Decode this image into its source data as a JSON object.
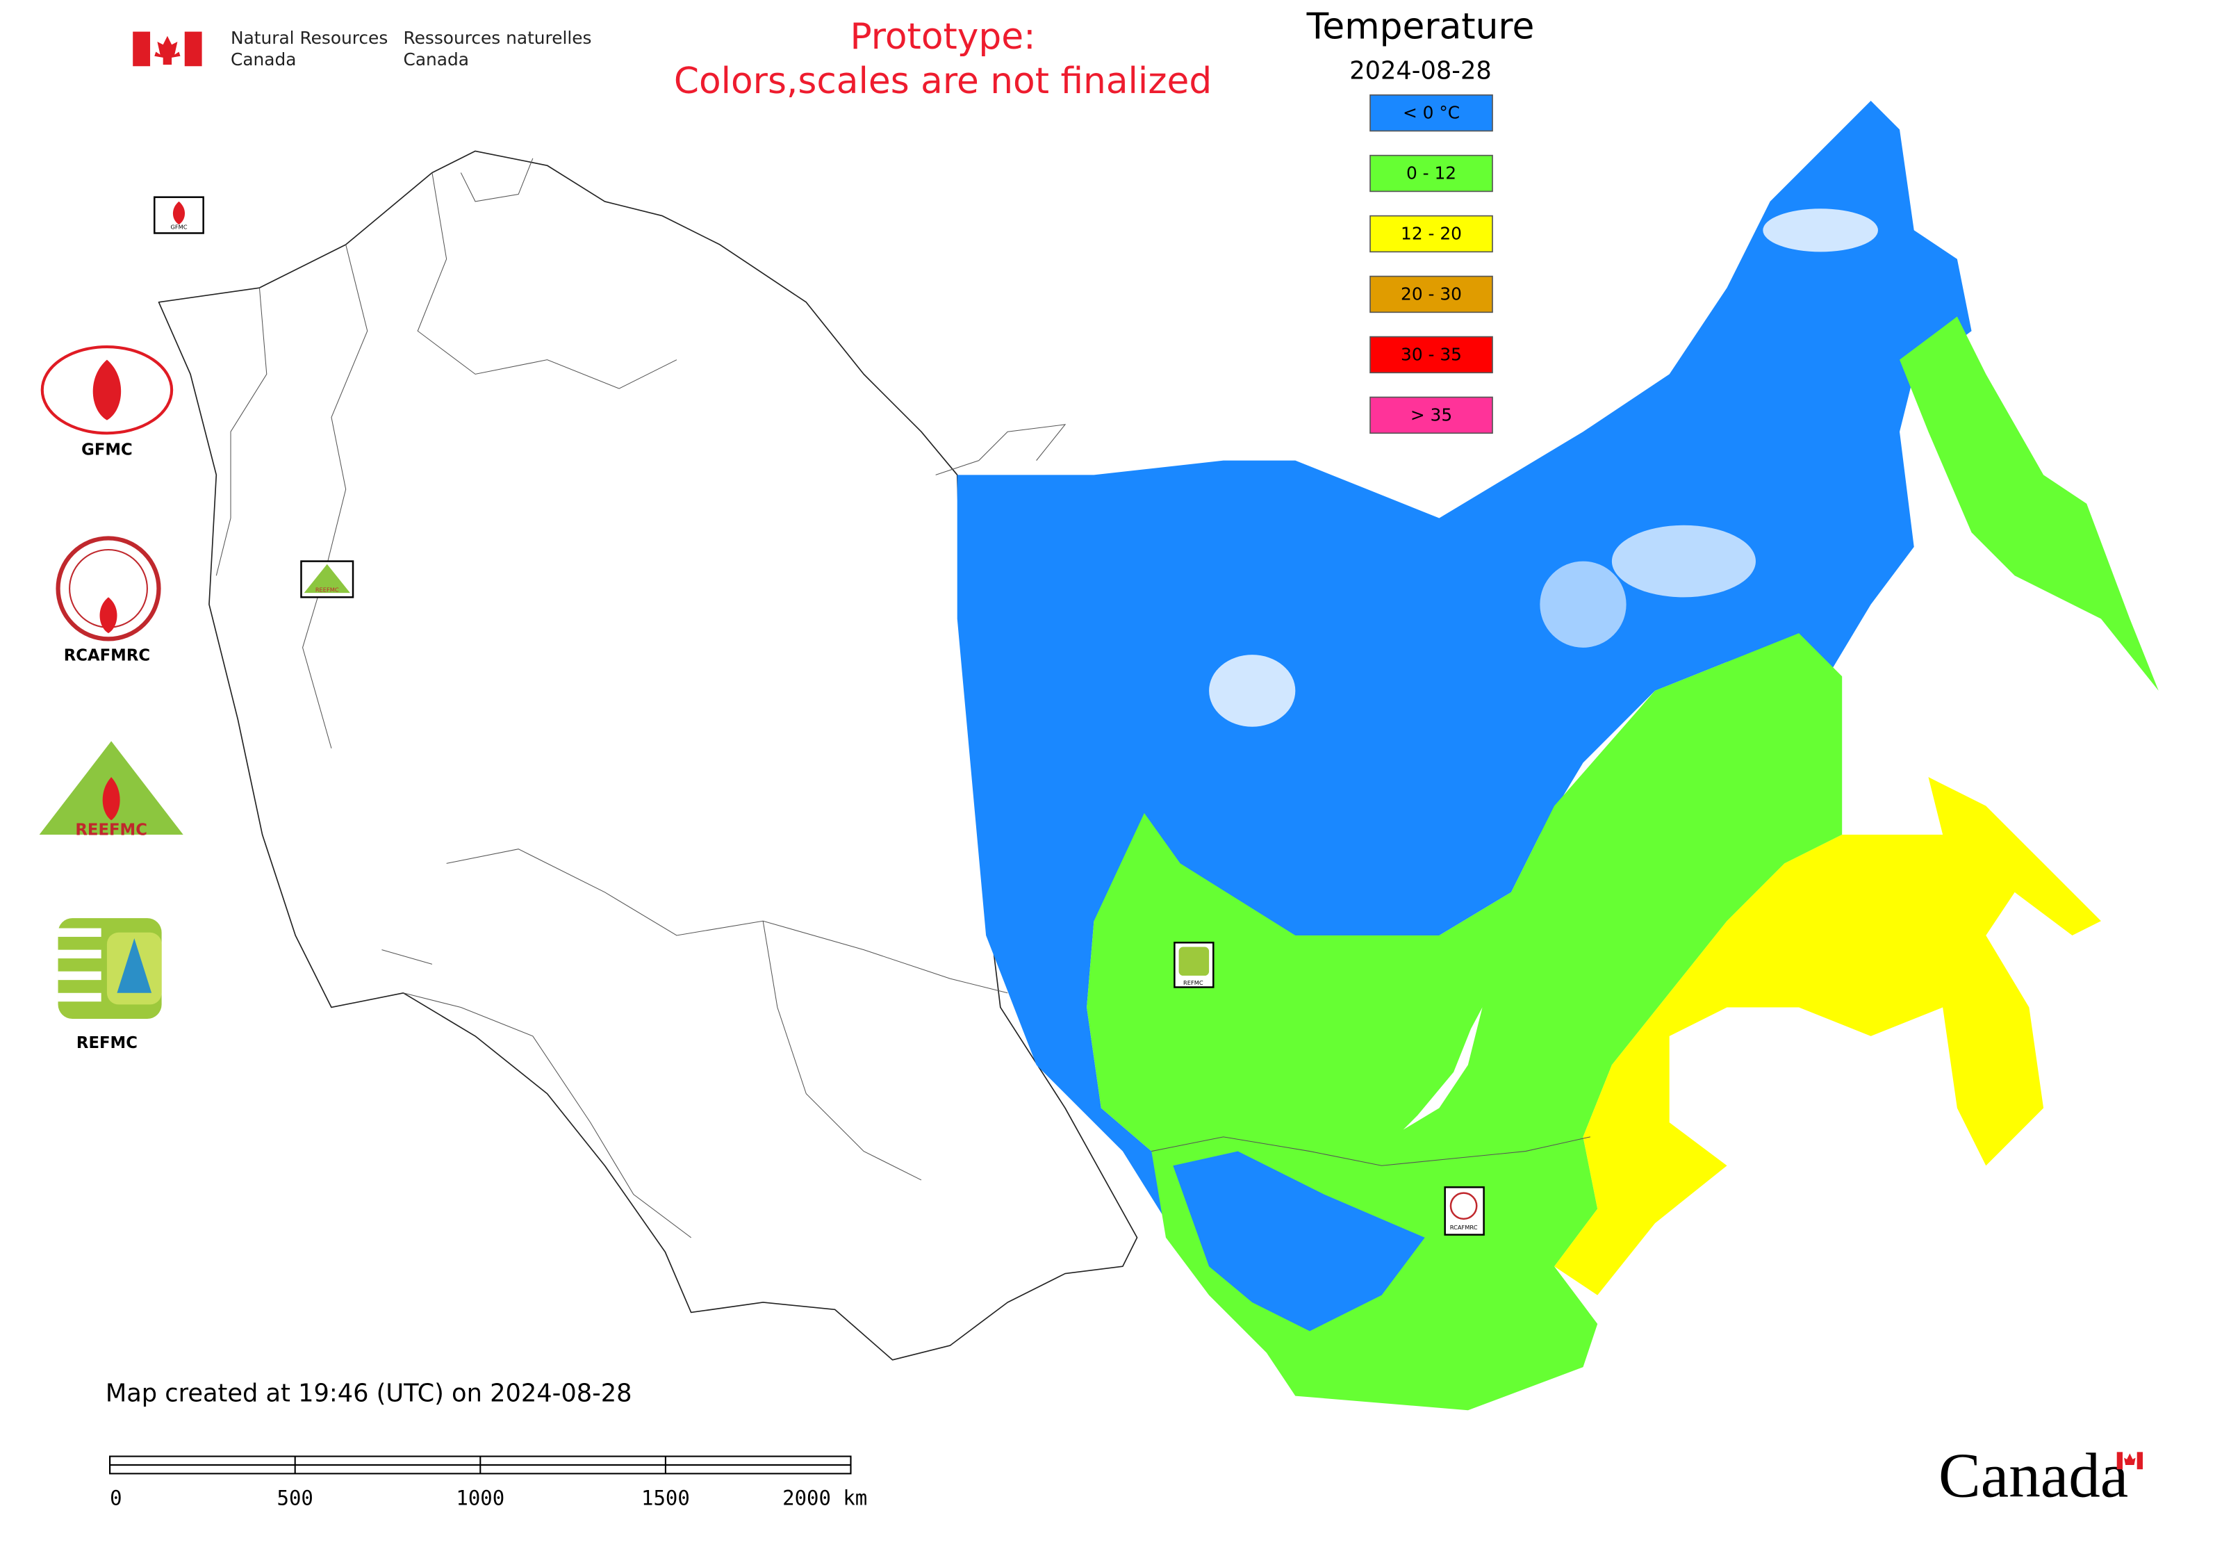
{
  "header": {
    "org_en": [
      "Natural Resources",
      "Canada"
    ],
    "org_fr": [
      "Ressources naturelles",
      "Canada"
    ],
    "notice": [
      "Prototype:",
      "Colors,scales are not finalized"
    ]
  },
  "legend": {
    "title": "Temperature",
    "date": "2024-08-28",
    "items": [
      {
        "label": "< 0 °C",
        "color": "#1a88ff"
      },
      {
        "label": "0 - 12",
        "color": "#66ff33"
      },
      {
        "label": "12 - 20",
        "color": "#ffff00"
      },
      {
        "label": "20 - 30",
        "color": "#e09c00"
      },
      {
        "label": "30 - 35",
        "color": "#ff0000"
      },
      {
        "label": "> 35",
        "color": "#ff3399"
      }
    ]
  },
  "logos": [
    {
      "label": "GFMC"
    },
    {
      "label": "RCAFMRC"
    },
    {
      "label": "REEFMC"
    },
    {
      "label": "REFMC"
    }
  ],
  "footer": {
    "created": "Map created at 19:46 (UTC) on 2024-08-28",
    "scale_labels": [
      "0",
      "500",
      "1000",
      "1500",
      "2000 km"
    ],
    "wordmark": "Canada"
  }
}
